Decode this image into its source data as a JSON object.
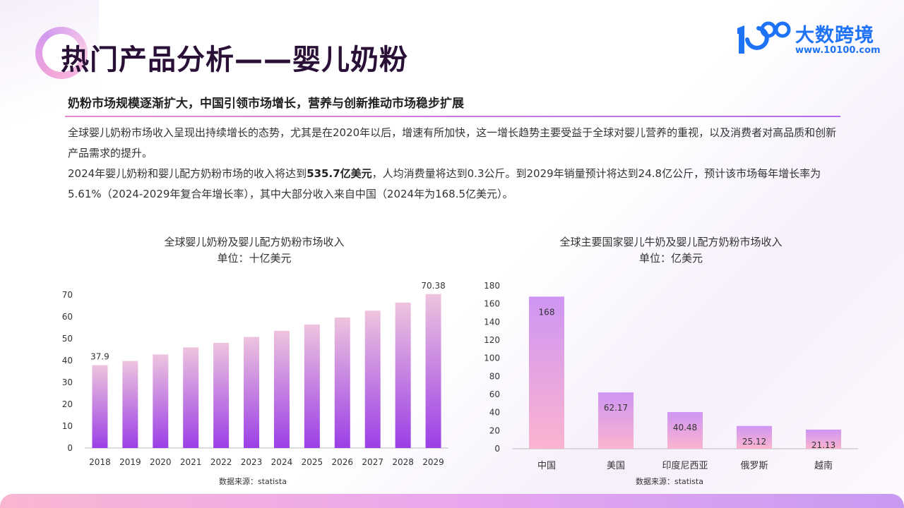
{
  "header": {
    "title": "热门产品分析——婴儿奶粉",
    "logo_text": "大数跨境",
    "logo_url": "www.10100.com"
  },
  "subtitle": "奶粉市场规模逐渐扩大，中国引领市场增长，营养与创新推动市场稳步扩展",
  "paragraphs": {
    "p1": "全球婴儿奶粉市场收入呈现出持续增长的态势，尤其是在2020年以后，增速有所加快，这一增长趋势主要受益于全球对婴儿营养的重视，以及消费者对高品质和创新产品需求的提升。",
    "p2_a": "2024年婴儿奶粉和婴儿配方奶粉市场的收入将达到",
    "p2_bold": "535.7亿美元",
    "p2_b": "，人均消费量将达到0.3公斤。到2029年销量预计将达到24.8亿公斤，预计该市场每年增长率为5.61%（2024-2029年复合年增长率），其中大部分收入来自中国（2024年为168.5亿美元）。"
  },
  "colors": {
    "accent": "#2a1036",
    "logo": "#1d72f5",
    "divider_start": "#e58ad3",
    "divider_end": "#b56be8",
    "bar1_top": "#eec4de",
    "bar1_bottom": "#9b3fe6",
    "bar2_top": "#cf95f3",
    "bar2_bottom": "#fbb4cf"
  },
  "chart_data": [
    {
      "type": "bar",
      "title": "全球婴儿奶粉及婴儿配方奶粉市场收入",
      "subtitle": "单位：十亿美元",
      "source": "数据来源：statista",
      "categories": [
        "2018",
        "2019",
        "2020",
        "2021",
        "2022",
        "2023",
        "2024",
        "2025",
        "2026",
        "2027",
        "2028",
        "2029"
      ],
      "values": [
        37.9,
        39.8,
        42.8,
        46.0,
        48.1,
        50.8,
        53.6,
        56.5,
        59.7,
        62.8,
        66.5,
        70.38
      ],
      "data_labels": [
        {
          "category": "2018",
          "text": "37.9"
        },
        {
          "category": "2029",
          "text": "70.38"
        }
      ],
      "yticks": [
        0,
        10,
        20,
        30,
        40,
        50,
        60,
        70
      ],
      "ylim": [
        0,
        70
      ]
    },
    {
      "type": "bar",
      "title": "全球主要国家婴儿牛奶及婴儿配方奶粉市场收入",
      "subtitle": "单位：亿美元",
      "source": "数据来源：statista",
      "categories": [
        "中国",
        "美国",
        "印度尼西亚",
        "俄罗斯",
        "越南"
      ],
      "values": [
        168,
        62.17,
        40.48,
        25.12,
        21.13
      ],
      "data_labels": [
        "168",
        "62.17",
        "40.48",
        "25.12",
        "21.13"
      ],
      "yticks": [
        0,
        20,
        40,
        60,
        80,
        100,
        120,
        140,
        160,
        180
      ],
      "ylim": [
        0,
        180
      ]
    }
  ]
}
